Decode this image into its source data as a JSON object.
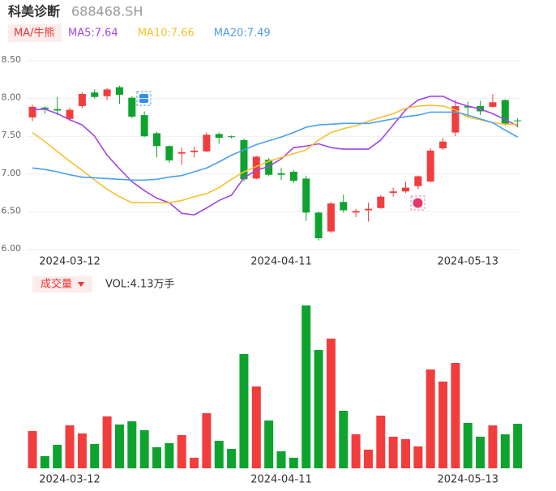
{
  "chart_data": {
    "type": "candlestick",
    "title": "科美诊断",
    "subtitle": "688468.SH",
    "indicator": "MA/牛熊",
    "volume_title": "成交量",
    "volume_label": "VOL:4.13万手",
    "categories": [
      null,
      null,
      null,
      "2024-03-12",
      null,
      null,
      null,
      null,
      null,
      null,
      null,
      null,
      null,
      null,
      null,
      null,
      null,
      null,
      null,
      null,
      "2024-04-11",
      null,
      null,
      null,
      null,
      null,
      null,
      null,
      null,
      null,
      null,
      null,
      null,
      null,
      null,
      "2024-05-13",
      null,
      null,
      null,
      null
    ],
    "open": [
      7.75,
      7.88,
      7.86,
      7.73,
      7.9,
      8.08,
      8.03,
      8.15,
      8.01,
      7.78,
      7.54,
      7.37,
      7.27,
      7.29,
      7.3,
      7.53,
      7.5,
      7.45,
      6.94,
      7.19,
      7.01,
      7.03,
      6.94,
      6.49,
      6.24,
      6.63,
      6.49,
      6.52,
      6.55,
      6.75,
      6.77,
      6.84,
      6.9,
      7.34,
      7.55,
      7.9,
      7.9,
      7.89,
      7.98,
      7.71
    ],
    "high": [
      7.92,
      7.9,
      8.02,
      7.88,
      8.08,
      8.12,
      8.14,
      8.17,
      8.03,
      7.83,
      7.56,
      7.38,
      7.35,
      7.36,
      7.55,
      7.55,
      7.51,
      7.47,
      7.24,
      7.21,
      7.08,
      7.05,
      6.98,
      6.5,
      6.63,
      6.73,
      6.54,
      6.62,
      6.72,
      6.82,
      6.9,
      6.98,
      7.34,
      7.48,
      7.98,
      7.96,
      7.97,
      8.06,
      7.99,
      7.74
    ],
    "low": [
      7.7,
      7.8,
      7.78,
      7.7,
      7.87,
      8.0,
      7.98,
      7.93,
      7.74,
      7.49,
      7.22,
      7.15,
      7.12,
      7.22,
      7.29,
      7.4,
      7.47,
      6.9,
      6.93,
      6.97,
      6.92,
      6.88,
      6.38,
      6.12,
      6.22,
      6.49,
      6.43,
      6.37,
      6.54,
      6.7,
      6.75,
      6.8,
      6.89,
      7.32,
      7.5,
      7.75,
      7.78,
      7.88,
      7.64,
      7.62
    ],
    "close": [
      7.89,
      7.86,
      7.84,
      7.85,
      8.06,
      8.02,
      8.12,
      8.05,
      7.76,
      7.5,
      7.37,
      7.18,
      7.29,
      7.31,
      7.52,
      7.48,
      7.49,
      6.93,
      7.23,
      6.99,
      6.99,
      6.91,
      6.49,
      6.15,
      6.61,
      6.52,
      6.51,
      6.54,
      6.7,
      6.77,
      6.82,
      6.97,
      7.31,
      7.43,
      7.9,
      7.88,
      7.83,
      7.95,
      7.66,
      7.7
    ],
    "volume": [
      3.45,
      1.13,
      2.18,
      3.98,
      3.23,
      2.25,
      4.81,
      4.06,
      4.36,
      3.53,
      1.95,
      2.33,
      3.08,
      0.98,
      5.11,
      2.55,
      1.8,
      10.59,
      7.59,
      4.43,
      1.58,
      0.98,
      15.09,
      10.96,
      12.02,
      5.33,
      3.15,
      1.73,
      4.88,
      2.93,
      2.7,
      2.03,
      9.16,
      8.04,
      9.76,
      4.21,
      2.93,
      3.98,
      3.15,
      4.13
    ],
    "up_color": "#f23d3d",
    "down_color": "#0ea32f",
    "series": [
      {
        "name": "MA5:7.64",
        "color": "#a444e8",
        "values": [
          7.85,
          7.86,
          7.8,
          7.72,
          7.65,
          7.5,
          7.25,
          7.07,
          6.9,
          6.78,
          6.68,
          6.62,
          6.48,
          6.46,
          6.55,
          6.65,
          6.72,
          6.95,
          7.05,
          7.1,
          7.2,
          7.35,
          7.37,
          7.4,
          7.35,
          7.33,
          7.33,
          7.33,
          7.45,
          7.65,
          7.85,
          7.98,
          8.03,
          8.03,
          7.95,
          7.9,
          7.86,
          7.8,
          7.72,
          7.64
        ]
      },
      {
        "name": "MA10:7.66",
        "color": "#f5c12e",
        "values": [
          7.55,
          7.43,
          7.3,
          7.17,
          7.05,
          6.92,
          6.8,
          6.7,
          6.62,
          6.62,
          6.62,
          6.62,
          6.65,
          6.7,
          6.74,
          6.82,
          6.93,
          7.03,
          7.1,
          7.17,
          7.22,
          7.27,
          7.32,
          7.45,
          7.55,
          7.6,
          7.64,
          7.7,
          7.75,
          7.8,
          7.87,
          7.9,
          7.91,
          7.9,
          7.85,
          7.75,
          7.72,
          7.68,
          7.66,
          7.66
        ]
      },
      {
        "name": "MA20:7.49",
        "color": "#4a9ff0",
        "values": [
          7.08,
          7.06,
          7.03,
          6.99,
          6.96,
          6.95,
          6.94,
          6.93,
          6.92,
          6.92,
          6.93,
          6.96,
          6.98,
          7.03,
          7.08,
          7.16,
          7.25,
          7.32,
          7.39,
          7.44,
          7.49,
          7.55,
          7.62,
          7.65,
          7.66,
          7.67,
          7.67,
          7.67,
          7.7,
          7.73,
          7.76,
          7.78,
          7.82,
          7.82,
          7.82,
          7.78,
          7.73,
          7.68,
          7.58,
          7.49
        ]
      }
    ],
    "ylim": [
      6.0,
      8.5
    ],
    "yticks": [
      {
        "value": 6.0,
        "label": "6.00"
      },
      {
        "value": 6.5,
        "label": "6.50"
      },
      {
        "value": 7.0,
        "label": "7.00"
      },
      {
        "value": 7.5,
        "label": "7.50"
      },
      {
        "value": 8.0,
        "label": "8.00"
      },
      {
        "value": 8.5,
        "label": "8.50"
      }
    ],
    "grid": true
  }
}
